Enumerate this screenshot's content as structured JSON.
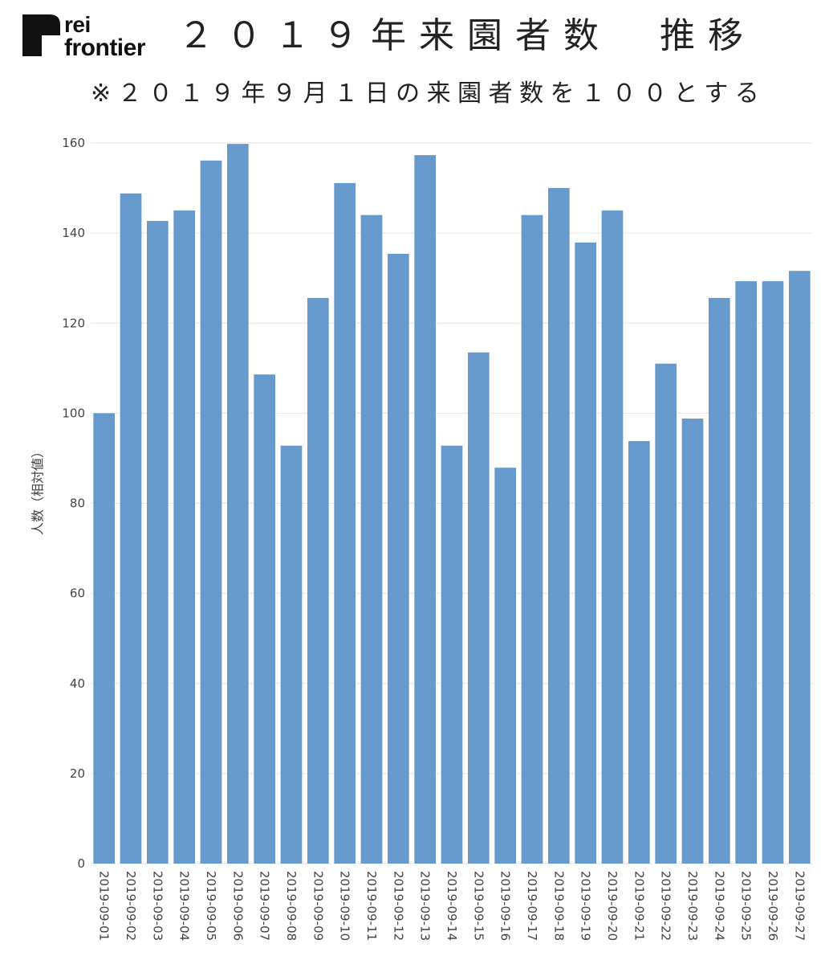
{
  "logo": {
    "line1": "rei",
    "line2": "frontier"
  },
  "chart_data": {
    "type": "bar",
    "title": "２０１９年来園者数　推移",
    "subtitle": "※２０１９年９月１日の来園者数を１００とする",
    "xlabel": "",
    "ylabel": "人数（相対値）",
    "ylim": [
      0,
      160
    ],
    "yticks": [
      0,
      20,
      40,
      60,
      80,
      100,
      120,
      140,
      160
    ],
    "grid": "horizontal",
    "categories": [
      "2019-09-01",
      "2019-09-02",
      "2019-09-03",
      "2019-09-04",
      "2019-09-05",
      "2019-09-06",
      "2019-09-07",
      "2019-09-08",
      "2019-09-09",
      "2019-09-10",
      "2019-09-11",
      "2019-09-12",
      "2019-09-13",
      "2019-09-14",
      "2019-09-15",
      "2019-09-16",
      "2019-09-17",
      "2019-09-18",
      "2019-09-19",
      "2019-09-20",
      "2019-09-21",
      "2019-09-22",
      "2019-09-23",
      "2019-09-24",
      "2019-09-25",
      "2019-09-26",
      "2019-09-27"
    ],
    "values": [
      100.0,
      148.8,
      142.7,
      145.0,
      156.1,
      159.8,
      108.6,
      92.8,
      125.6,
      151.1,
      144.0,
      135.4,
      157.3,
      92.8,
      113.5,
      87.9,
      144.0,
      150.0,
      137.9,
      145.0,
      93.8,
      111.0,
      98.8,
      125.6,
      129.3,
      129.3,
      131.6
    ],
    "colors": {
      "bar": "#6699cc",
      "grid": "#e6e6e6",
      "text": "#444444"
    }
  }
}
